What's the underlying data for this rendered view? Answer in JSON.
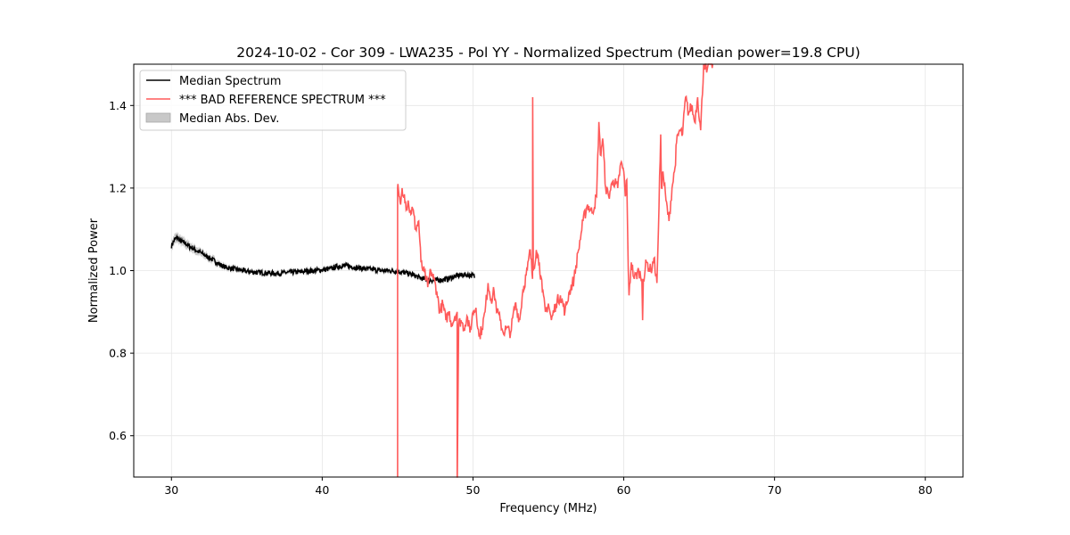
{
  "chart_data": {
    "type": "line",
    "title": "2024-10-02 - Cor 309 - LWA235 - Pol YY - Normalized Spectrum (Median power=19.8 CPU)",
    "xlabel": "Frequency (MHz)",
    "ylabel": "Normalized Power",
    "xlim": [
      27.5,
      82.5
    ],
    "ylim": [
      0.5,
      1.5
    ],
    "xticks": [
      30,
      40,
      50,
      60,
      70,
      80
    ],
    "yticks": [
      0.6,
      0.8,
      1.0,
      1.2,
      1.4
    ],
    "xtick_labels": [
      "30",
      "40",
      "50",
      "60",
      "70",
      "80"
    ],
    "ytick_labels": [
      "0.6",
      "0.8",
      "1.0",
      "1.2",
      "1.4"
    ],
    "grid": true,
    "legend_position": "top-left",
    "legend": {
      "median": "Median Spectrum",
      "bad": "*** BAD REFERENCE SPECTRUM ***",
      "mad": "Median Abs. Dev."
    },
    "colors": {
      "median": "#000000",
      "bad": "#ff5a5a",
      "mad": "#c8c8c8"
    },
    "series": [
      {
        "name": "Median Spectrum",
        "x": [
          30.0,
          30.2,
          30.4,
          30.6,
          30.8,
          31.0,
          31.2,
          31.4,
          31.6,
          31.8,
          32.0,
          32.4,
          32.8,
          33.2,
          33.6,
          34.0,
          34.5,
          35.0,
          35.5,
          36.0,
          36.5,
          37.0,
          37.5,
          38.0,
          38.5,
          39.0,
          39.5,
          40.0,
          40.5,
          41.0,
          41.5,
          42.0,
          42.5,
          43.0,
          43.5,
          44.0,
          44.5,
          45.0,
          45.5,
          46.0,
          46.5,
          47.0,
          47.5,
          48.0,
          48.5,
          49.0,
          49.5,
          50.0,
          50.1
        ],
        "values": [
          1.06,
          1.075,
          1.08,
          1.072,
          1.068,
          1.065,
          1.058,
          1.055,
          1.05,
          1.046,
          1.042,
          1.033,
          1.025,
          1.015,
          1.008,
          1.005,
          1.002,
          0.998,
          0.996,
          0.995,
          0.994,
          0.993,
          0.995,
          0.996,
          0.997,
          0.999,
          1.0,
          1.002,
          1.004,
          1.01,
          1.012,
          1.009,
          1.006,
          1.004,
          1.002,
          1.0,
          1.0,
          0.998,
          0.995,
          0.99,
          0.982,
          0.978,
          0.976,
          0.978,
          0.982,
          0.988,
          0.99,
          0.988,
          0.985
        ],
        "mad": [
          0.012,
          0.012,
          0.012,
          0.011,
          0.011,
          0.011,
          0.01,
          0.01,
          0.01,
          0.009,
          0.009,
          0.008,
          0.008,
          0.007,
          0.006,
          0.006,
          0.005,
          0.005,
          0.005,
          0.005,
          0.005,
          0.005,
          0.005,
          0.005,
          0.005,
          0.005,
          0.005,
          0.005,
          0.005,
          0.005,
          0.005,
          0.005,
          0.005,
          0.005,
          0.005,
          0.005,
          0.005,
          0.005,
          0.005,
          0.005,
          0.005,
          0.005,
          0.005,
          0.005,
          0.005,
          0.005,
          0.005,
          0.005,
          0.005
        ]
      },
      {
        "name": "*** BAD REFERENCE SPECTRUM ***",
        "x": [
          45.0,
          45.0,
          45.0,
          45.02,
          45.1,
          45.2,
          45.3,
          45.45,
          45.6,
          45.7,
          45.8,
          46.0,
          46.2,
          46.4,
          46.55,
          46.7,
          46.9,
          47.0,
          47.2,
          47.4,
          47.6,
          47.8,
          48.0,
          48.2,
          48.4,
          48.6,
          48.8,
          48.95,
          48.95,
          48.96,
          49.05,
          49.2,
          49.4,
          49.6,
          49.8,
          50.0,
          50.2,
          50.4,
          50.6,
          50.8,
          51.0,
          51.2,
          51.4,
          51.6,
          51.8,
          52.0,
          52.2,
          52.5,
          52.8,
          53.1,
          53.3,
          53.6,
          53.8,
          53.95,
          53.96,
          54.0,
          54.2,
          54.4,
          54.6,
          54.8,
          55.0,
          55.2,
          55.5,
          55.8,
          56.1,
          56.4,
          56.7,
          57.0,
          57.3,
          57.6,
          57.9,
          58.2,
          58.35,
          58.45,
          58.6,
          58.8,
          59.0,
          59.3,
          59.6,
          59.8,
          60.0,
          60.1,
          60.2,
          60.3,
          60.35,
          60.5,
          60.7,
          61.0,
          61.2,
          61.25,
          61.3,
          61.5,
          61.8,
          62.0,
          62.2,
          62.3,
          62.45,
          62.5,
          62.6,
          62.8,
          63.0,
          63.2,
          63.4,
          63.5,
          63.7,
          63.9,
          64.1,
          64.3,
          64.5,
          64.7,
          64.9,
          65.1,
          65.3,
          65.45,
          65.5,
          65.6,
          65.8,
          65.9
        ],
        "values": [
          0.5,
          0.5,
          1.2,
          1.21,
          1.18,
          1.16,
          1.2,
          1.185,
          1.15,
          1.17,
          1.14,
          1.15,
          1.1,
          1.12,
          1.02,
          1.0,
          0.98,
          0.96,
          1.0,
          0.98,
          0.95,
          0.9,
          0.92,
          0.88,
          0.9,
          0.87,
          0.89,
          0.9,
          0.5,
          0.5,
          0.87,
          0.88,
          0.86,
          0.89,
          0.85,
          0.9,
          0.91,
          0.84,
          0.86,
          0.9,
          0.97,
          0.93,
          0.95,
          0.9,
          0.88,
          0.85,
          0.86,
          0.85,
          0.92,
          0.88,
          0.95,
          1.0,
          1.05,
          0.98,
          1.42,
          1.0,
          1.05,
          1.02,
          0.95,
          0.9,
          0.92,
          0.88,
          0.92,
          0.94,
          0.9,
          0.95,
          0.98,
          1.05,
          1.12,
          1.16,
          1.14,
          1.18,
          1.36,
          1.28,
          1.32,
          1.2,
          1.18,
          1.22,
          1.2,
          1.26,
          1.24,
          1.18,
          1.22,
          1.0,
          0.94,
          1.02,
          0.98,
          1.0,
          0.98,
          0.88,
          0.98,
          1.02,
          1.0,
          1.03,
          0.97,
          1.1,
          1.33,
          1.2,
          1.24,
          1.17,
          1.12,
          1.2,
          1.25,
          1.31,
          1.34,
          1.33,
          1.42,
          1.38,
          1.4,
          1.36,
          1.42,
          1.34,
          1.5,
          1.5,
          1.48,
          1.5,
          1.5,
          1.5
        ]
      }
    ]
  }
}
